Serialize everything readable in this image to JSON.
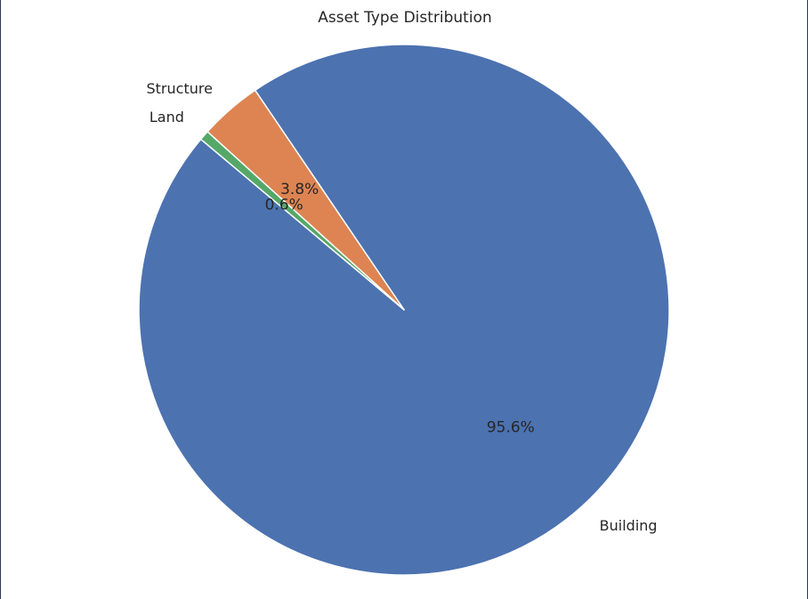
{
  "chart_data": {
    "type": "pie",
    "title": "Asset Type Distribution",
    "categories": [
      "Building",
      "Structure",
      "Land"
    ],
    "values": [
      95.6,
      3.8,
      0.6
    ],
    "pct_labels": [
      "95.6%",
      "3.8%",
      "0.6%"
    ],
    "colors": [
      "#4c72b0",
      "#dd8452",
      "#55a868"
    ],
    "start_angle_deg": 140,
    "direction": "counterclockwise",
    "legend": "none"
  }
}
